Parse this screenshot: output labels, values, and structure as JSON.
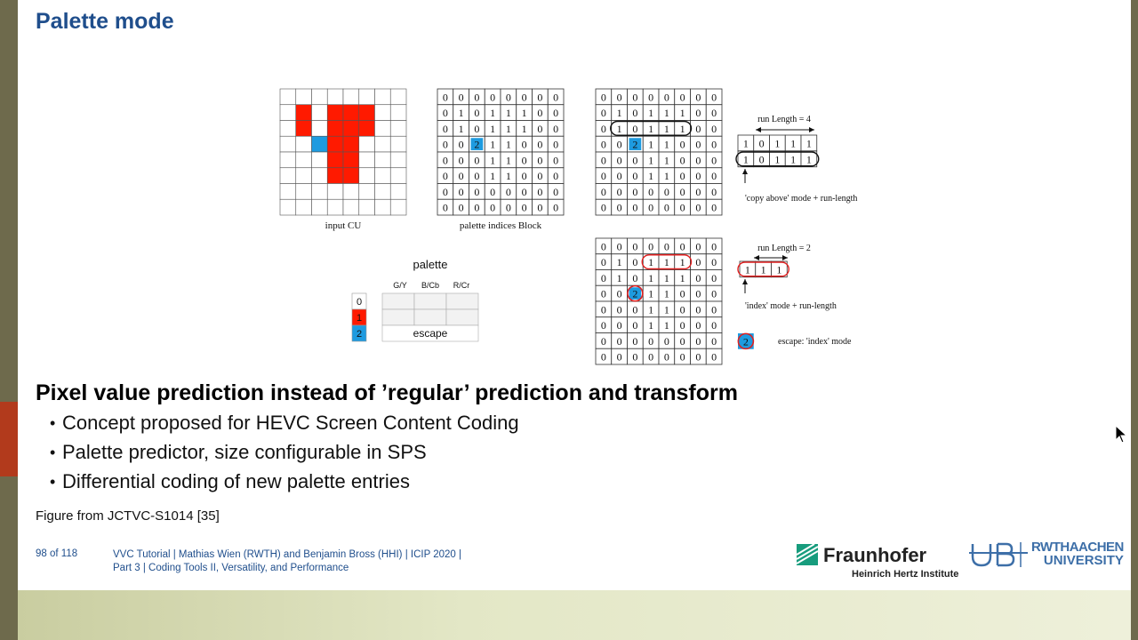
{
  "slide": {
    "title": "Palette mode",
    "heading": "Pixel value prediction instead of ’regular’ prediction and transform",
    "bullets": [
      "Concept proposed for HEVC Screen Content Coding",
      "Palette predictor, size configurable in SPS",
      "Differential coding of new palette entries"
    ],
    "caption": "Figure from JCTVC-S1014 [35]"
  },
  "figure": {
    "input_cu_label": "input CU",
    "indices_label": "palette indices Block",
    "palette_title": "palette",
    "palette_columns": [
      "G/Y",
      "B/Cb",
      "R/Cr"
    ],
    "palette_indices": [
      "0",
      "1",
      "2"
    ],
    "escape_label": "escape",
    "copy_run_label": "run Length = 4",
    "copy_run_values": [
      "1",
      "0",
      "1",
      "1",
      "1"
    ],
    "copy_mode_label": "'copy above' mode + run-length",
    "index_run_label": "run Length = 2",
    "index_run_values": [
      "1",
      "1",
      "1"
    ],
    "index_mode_label": "'index' mode + run-length",
    "escape_index": "2",
    "escape_mode_label": "escape: 'index' mode",
    "index_matrix": [
      [
        "0",
        "0",
        "0",
        "0",
        "0",
        "0",
        "0",
        "0"
      ],
      [
        "0",
        "1",
        "0",
        "1",
        "1",
        "1",
        "0",
        "0"
      ],
      [
        "0",
        "1",
        "0",
        "1",
        "1",
        "1",
        "0",
        "0"
      ],
      [
        "0",
        "0",
        "2",
        "1",
        "1",
        "0",
        "0",
        "0"
      ],
      [
        "0",
        "0",
        "0",
        "1",
        "1",
        "0",
        "0",
        "0"
      ],
      [
        "0",
        "0",
        "0",
        "1",
        "1",
        "0",
        "0",
        "0"
      ],
      [
        "0",
        "0",
        "0",
        "0",
        "0",
        "0",
        "0",
        "0"
      ],
      [
        "0",
        "0",
        "0",
        "0",
        "0",
        "0",
        "0",
        "0"
      ]
    ],
    "colors": {
      "red": "#ff1a00",
      "blue": "#1e9be0",
      "highlight": "#e02020"
    }
  },
  "footer": {
    "page": "98 of 118",
    "line1": "VVC Tutorial  |  Mathias Wien (RWTH) and Benjamin Bross (HHI)  |  ICIP 2020  |",
    "line2": "Part 3  |  Coding Tools II, Versatility, and Performance",
    "fraunhofer": "Fraunhofer",
    "hhi": "Heinrich Hertz Institute",
    "rwth_line1": "RWTHAACHEN",
    "rwth_line2": "UNIVERSITY"
  }
}
